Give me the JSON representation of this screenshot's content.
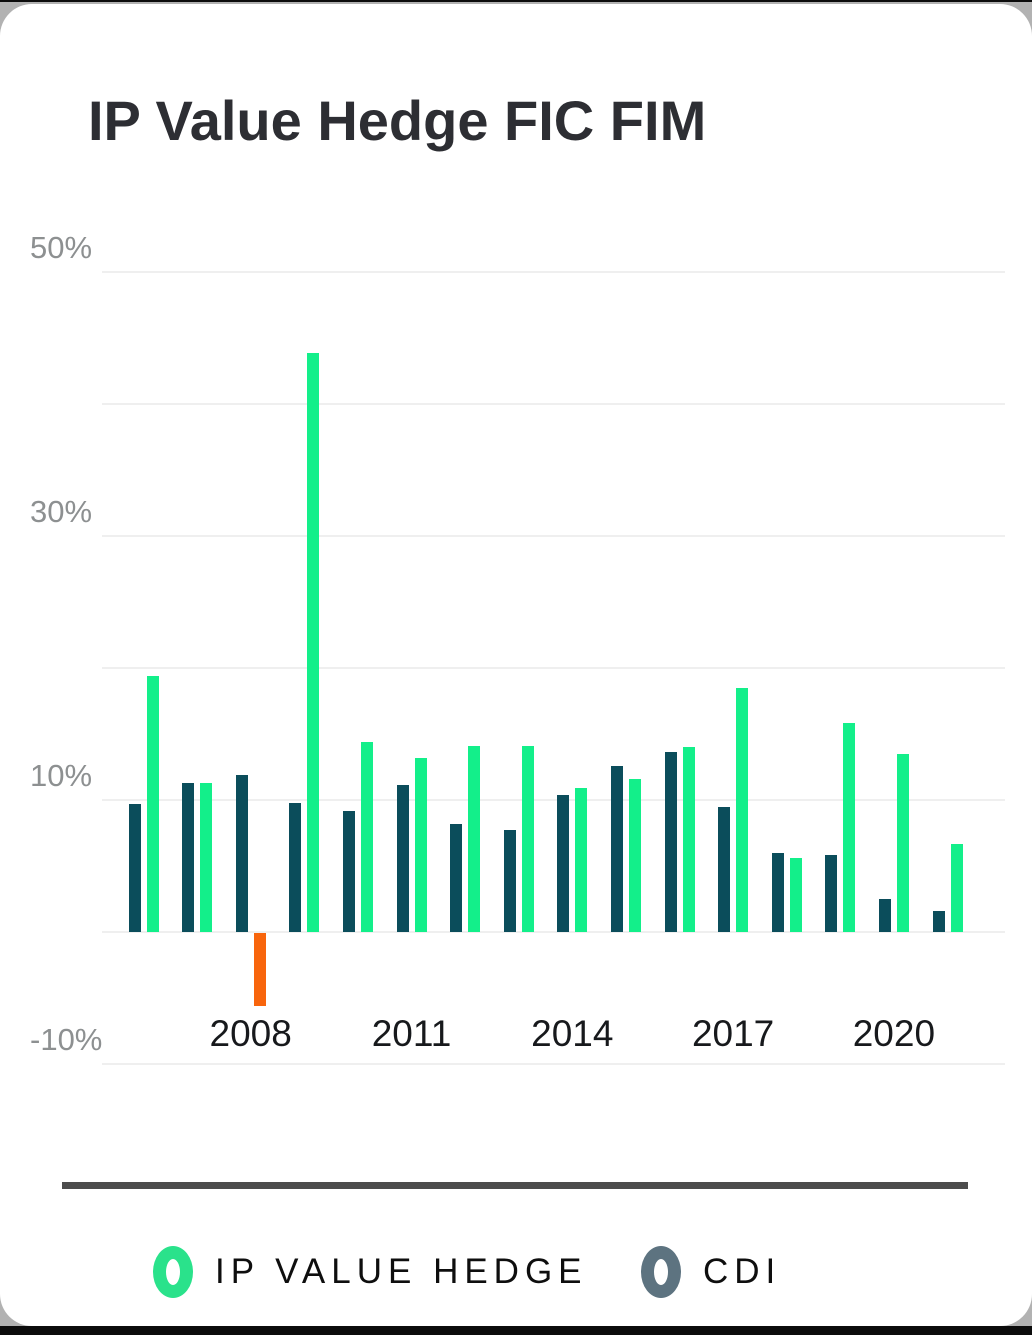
{
  "page": {
    "card_background": "#ffffff",
    "outer_background": "#0c0c0c",
    "corner_backdrop": "#b2b2b2"
  },
  "colors": {
    "gridline": "#efefef",
    "y_label_text": "#8d9091",
    "x_label_text": "#17191c",
    "title_text": "#2d2e33",
    "divider": "#4c4c4c"
  },
  "legend": {
    "items": [
      {
        "label": "IP VALUE HEDGE",
        "marker": "ring",
        "marker_color": "#2ae28b"
      },
      {
        "label": "CDI",
        "marker": "ring",
        "marker_color": "#5d7380"
      }
    ]
  },
  "chart_data": {
    "type": "bar",
    "title": "IP Value Hedge FIC FIM",
    "categories": [
      2006,
      2007,
      2008,
      2009,
      2010,
      2011,
      2012,
      2013,
      2014,
      2015,
      2016,
      2017,
      2018,
      2019,
      2020,
      2021
    ],
    "series": [
      {
        "name": "CDI",
        "color": "#0b4d5b",
        "values": [
          9.7,
          11.3,
          11.9,
          9.8,
          9.2,
          11.1,
          8.2,
          7.7,
          10.4,
          12.6,
          13.6,
          9.5,
          6.0,
          5.8,
          2.5,
          1.6
        ]
      },
      {
        "name": "IP VALUE HEDGE",
        "color": "#13ef8a",
        "negative_color": "#f8650c",
        "values": [
          19.4,
          11.3,
          -5.5,
          43.9,
          14.4,
          13.2,
          14.1,
          14.1,
          10.9,
          11.6,
          14.0,
          18.5,
          5.6,
          15.8,
          13.5,
          6.7
        ]
      }
    ],
    "x_axis": {
      "tick_labels": [
        "2008",
        "2011",
        "2014",
        "2017",
        "2020"
      ],
      "tick_category_indices": [
        2,
        5,
        8,
        11,
        14
      ]
    },
    "y_axis": {
      "unit": "%",
      "tick_labels": [
        "50%",
        "30%",
        "10%",
        "-10%"
      ],
      "tick_values": [
        50,
        30,
        10,
        -10
      ],
      "gridline_values": [
        50,
        40,
        30,
        20,
        10,
        0,
        -10
      ]
    },
    "ylim": [
      -10,
      55
    ],
    "grid": "horizontal",
    "legend_position": "bottom",
    "bar_group_order_left_to_right": [
      "CDI",
      "IP VALUE HEDGE"
    ]
  }
}
